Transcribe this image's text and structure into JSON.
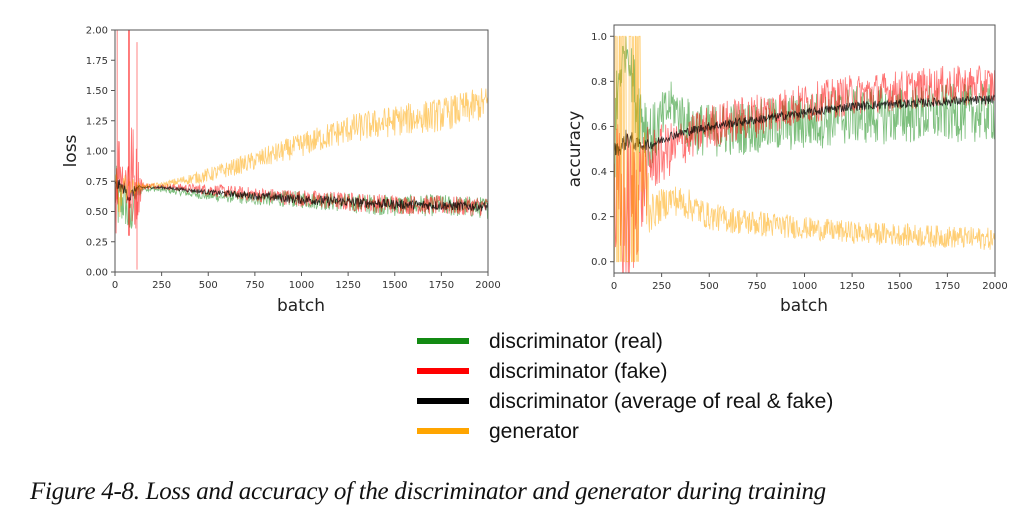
{
  "caption": "Figure 4-8. Loss and accuracy of the discriminator and generator during training",
  "legend": [
    {
      "label": "discriminator (real)",
      "color": "#138a13"
    },
    {
      "label": "discriminator (fake)",
      "color": "#ff0000"
    },
    {
      "label": "discriminator (average of real & fake)",
      "color": "#000000"
    },
    {
      "label": "generator",
      "color": "#ffa500"
    }
  ],
  "chart_data": [
    {
      "type": "line",
      "id": "loss",
      "title": "",
      "xlabel": "batch",
      "ylabel": "loss",
      "xlim": [
        0,
        2000
      ],
      "ylim": [
        0,
        2.0
      ],
      "xticks": [
        0,
        250,
        500,
        750,
        1000,
        1250,
        1500,
        1750,
        2000
      ],
      "xtick_labels": [
        "0",
        "250",
        "500",
        "750",
        "1000",
        "1250",
        "1500",
        "1750",
        "2000"
      ],
      "yticks": [
        0,
        0.25,
        0.5,
        0.75,
        1.0,
        1.25,
        1.5,
        1.75,
        2.0
      ],
      "ytick_labels": [
        "0.00",
        "0.25",
        "0.50",
        "0.75",
        "1.00",
        "1.25",
        "1.50",
        "1.75",
        "2.00"
      ],
      "grid": false,
      "series": [
        {
          "name": "discriminator (real)",
          "color": "#138a13",
          "x": [
            0,
            20,
            50,
            80,
            110,
            150,
            250,
            500,
            750,
            1000,
            1250,
            1500,
            1750,
            2000
          ],
          "values": [
            0.69,
            0.55,
            0.6,
            0.4,
            0.65,
            0.69,
            0.68,
            0.63,
            0.61,
            0.6,
            0.57,
            0.55,
            0.55,
            0.53
          ],
          "noise": [
            0.25,
            0.25,
            0.2,
            0.2,
            0.1,
            0.02,
            0.02,
            0.04,
            0.06,
            0.07,
            0.08,
            0.09,
            0.09,
            0.09
          ]
        },
        {
          "name": "discriminator (fake)",
          "color": "#ff0000",
          "x": [
            0,
            20,
            50,
            80,
            110,
            150,
            250,
            500,
            750,
            1000,
            1250,
            1500,
            1750,
            2000
          ],
          "values": [
            0.75,
            0.9,
            0.75,
            0.8,
            0.72,
            0.71,
            0.71,
            0.68,
            0.64,
            0.61,
            0.58,
            0.56,
            0.55,
            0.54
          ],
          "noise": [
            0.6,
            0.3,
            0.1,
            0.6,
            0.4,
            0.03,
            0.02,
            0.05,
            0.06,
            0.07,
            0.08,
            0.08,
            0.08,
            0.08
          ]
        },
        {
          "name": "discriminator (average of real & fake)",
          "color": "#000000",
          "x": [
            0,
            20,
            50,
            80,
            110,
            150,
            250,
            500,
            750,
            1000,
            1250,
            1500,
            1750,
            2000
          ],
          "values": [
            0.71,
            0.72,
            0.68,
            0.62,
            0.69,
            0.7,
            0.7,
            0.66,
            0.63,
            0.6,
            0.58,
            0.56,
            0.55,
            0.54
          ],
          "noise": [
            0.05,
            0.05,
            0.04,
            0.06,
            0.03,
            0.01,
            0.01,
            0.02,
            0.03,
            0.04,
            0.04,
            0.04,
            0.04,
            0.04
          ]
        },
        {
          "name": "generator",
          "color": "#ffa500",
          "x": [
            0,
            20,
            50,
            80,
            110,
            150,
            250,
            500,
            750,
            1000,
            1250,
            1500,
            1750,
            2000
          ],
          "values": [
            0.7,
            0.55,
            0.7,
            0.72,
            0.7,
            0.71,
            0.72,
            0.8,
            0.92,
            1.05,
            1.18,
            1.25,
            1.3,
            1.4
          ],
          "noise": [
            0.15,
            0.15,
            0.1,
            0.1,
            0.05,
            0.02,
            0.02,
            0.06,
            0.08,
            0.1,
            0.12,
            0.13,
            0.14,
            0.14
          ]
        }
      ]
    },
    {
      "type": "line",
      "id": "accuracy",
      "title": "",
      "xlabel": "batch",
      "ylabel": "accuracy",
      "xlim": [
        0,
        2000
      ],
      "ylim": [
        -0.05,
        1.05
      ],
      "xticks": [
        0,
        250,
        500,
        750,
        1000,
        1250,
        1500,
        1750,
        2000
      ],
      "xtick_labels": [
        "0",
        "250",
        "500",
        "750",
        "1000",
        "1250",
        "1500",
        "1750",
        "2000"
      ],
      "yticks": [
        0.0,
        0.2,
        0.4,
        0.6,
        0.8,
        1.0
      ],
      "ytick_labels": [
        "0.0",
        "0.2",
        "0.4",
        "0.6",
        "0.8",
        "1.0"
      ],
      "grid": false,
      "series": [
        {
          "name": "discriminator (real)",
          "color": "#138a13",
          "x": [
            0,
            30,
            70,
            120,
            200,
            300,
            400,
            500,
            750,
            1000,
            1250,
            1500,
            1750,
            2000
          ],
          "values": [
            0.5,
            0.85,
            0.95,
            0.7,
            0.55,
            0.7,
            0.6,
            0.58,
            0.6,
            0.62,
            0.65,
            0.65,
            0.66,
            0.66
          ],
          "noise": [
            0.3,
            0.15,
            0.05,
            0.2,
            0.15,
            0.1,
            0.12,
            0.12,
            0.12,
            0.13,
            0.13,
            0.13,
            0.13,
            0.13
          ]
        },
        {
          "name": "discriminator (fake)",
          "color": "#ff0000",
          "x": [
            0,
            30,
            70,
            120,
            200,
            300,
            400,
            500,
            750,
            1000,
            1250,
            1500,
            1750,
            2000
          ],
          "values": [
            0.3,
            0.2,
            0.2,
            0.3,
            0.45,
            0.5,
            0.55,
            0.6,
            0.65,
            0.7,
            0.74,
            0.76,
            0.78,
            0.78
          ],
          "noise": [
            0.4,
            0.4,
            0.4,
            0.3,
            0.15,
            0.12,
            0.1,
            0.1,
            0.1,
            0.09,
            0.09,
            0.09,
            0.09,
            0.09
          ]
        },
        {
          "name": "discriminator (average of real & fake)",
          "color": "#000000",
          "x": [
            0,
            30,
            70,
            120,
            200,
            300,
            400,
            500,
            750,
            1000,
            1250,
            1500,
            1750,
            2000
          ],
          "values": [
            0.5,
            0.5,
            0.55,
            0.52,
            0.52,
            0.56,
            0.58,
            0.6,
            0.63,
            0.66,
            0.69,
            0.7,
            0.71,
            0.72
          ],
          "noise": [
            0.03,
            0.03,
            0.05,
            0.03,
            0.02,
            0.02,
            0.02,
            0.02,
            0.02,
            0.02,
            0.02,
            0.02,
            0.02,
            0.02
          ]
        },
        {
          "name": "generator",
          "color": "#ffa500",
          "x": [
            0,
            30,
            70,
            120,
            200,
            300,
            400,
            500,
            750,
            1000,
            1250,
            1500,
            1750,
            2000
          ],
          "values": [
            0.5,
            1.0,
            0.0,
            0.5,
            0.22,
            0.28,
            0.25,
            0.2,
            0.17,
            0.15,
            0.13,
            0.12,
            0.11,
            0.1
          ],
          "noise": [
            0.5,
            0.0,
            0.0,
            0.5,
            0.08,
            0.07,
            0.07,
            0.06,
            0.06,
            0.05,
            0.05,
            0.05,
            0.05,
            0.05
          ]
        }
      ]
    }
  ]
}
